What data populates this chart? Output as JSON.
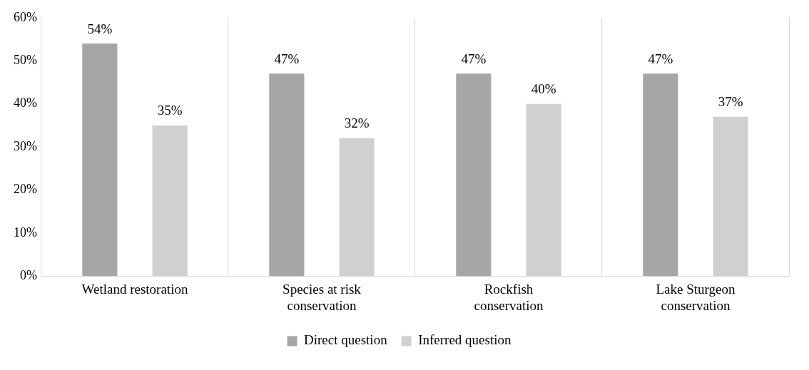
{
  "chart_data": {
    "type": "bar",
    "categories": [
      "Wetland restoration",
      "Species at risk conservation",
      "Rockfish conservation",
      "Lake Sturgeon conservation"
    ],
    "series": [
      {
        "name": "Direct question",
        "color": "#a6a6a6",
        "values": [
          54,
          47,
          47,
          47
        ],
        "value_labels": [
          "54%",
          "47%",
          "47%",
          "47%"
        ]
      },
      {
        "name": "Inferred question",
        "color": "#d0d0d0",
        "values": [
          35,
          32,
          40,
          37
        ],
        "value_labels": [
          "35%",
          "32%",
          "40%",
          "37%"
        ]
      }
    ],
    "ylim": [
      0,
      60
    ],
    "yticks": [
      {
        "value": 0,
        "label": "0%"
      },
      {
        "value": 10,
        "label": "10%"
      },
      {
        "value": 20,
        "label": "20%"
      },
      {
        "value": 30,
        "label": "30%"
      },
      {
        "value": 40,
        "label": "40%"
      },
      {
        "value": 50,
        "label": "50%"
      },
      {
        "value": 60,
        "label": "60%"
      }
    ],
    "grid": "x",
    "legend": "bottom"
  }
}
